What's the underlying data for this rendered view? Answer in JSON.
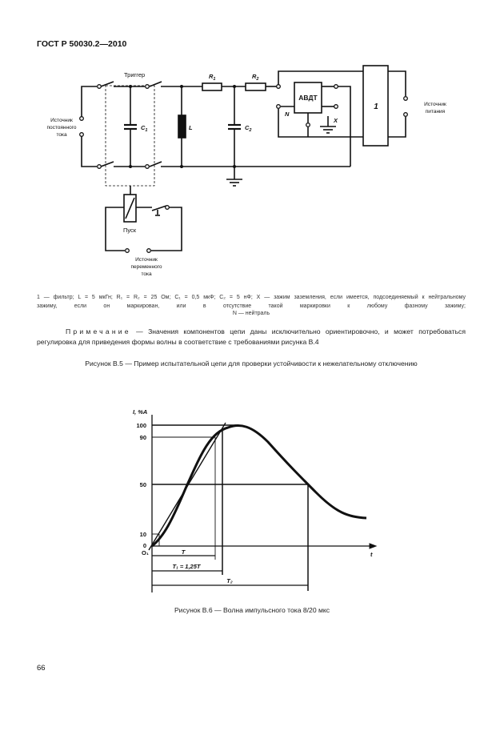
{
  "header": "ГОСТ Р 50030.2—2010",
  "circuit": {
    "trigger": "Триггер",
    "dc_source": [
      "Источник",
      "постоянного",
      "тока"
    ],
    "ac_source": [
      "Источник",
      "переменного",
      "тока"
    ],
    "power_source": [
      "Источник",
      "питания"
    ],
    "start": "Пуск",
    "c1": {
      "text": "C",
      "sub": "1"
    },
    "c2": {
      "text": "C",
      "sub": "2"
    },
    "l": "L",
    "r1": {
      "text": "R",
      "sub": "1"
    },
    "r2": {
      "text": "R",
      "sub": "2"
    },
    "device": "АВДТ",
    "n": "N",
    "x": "X",
    "filter": "1"
  },
  "legend": {
    "lines": "1 — фильтр; L = 5 мкГн; R₁ = R₂ = 25 Ом; C₁ = 0,5 мкФ; C₂ = 5 нФ; X — зажим заземления, если имеется, подсоединяемый к нейтральному зажиму, если он маркирован, или в отсутствие такой маркировки к любому фазному зажиму;",
    "last": "N — нейтраль"
  },
  "note": {
    "label": "Примечание",
    "text": " — Значения компонентов цепи даны исключительно ориентировочно, и может потребоваться регулировка для приведения формы волны в соответствие с требованиями рисунка В.4"
  },
  "figure_b5_caption": "Рисунок В.5 — Пример испытательной цепи для проверки устойчивости к нежелательному отключению",
  "waveform": {
    "ylabel": "I, %A",
    "xlabel": "t",
    "yticks": [
      "100",
      "90",
      "50",
      "10",
      "0"
    ],
    "origin": "O₁",
    "t": "T",
    "t1": "T₁ = 1,25T",
    "t2": "T₂"
  },
  "figure_b6_caption": "Рисунок В.6 — Волна импульсного тока 8/20 мкс",
  "page_number": "66"
}
